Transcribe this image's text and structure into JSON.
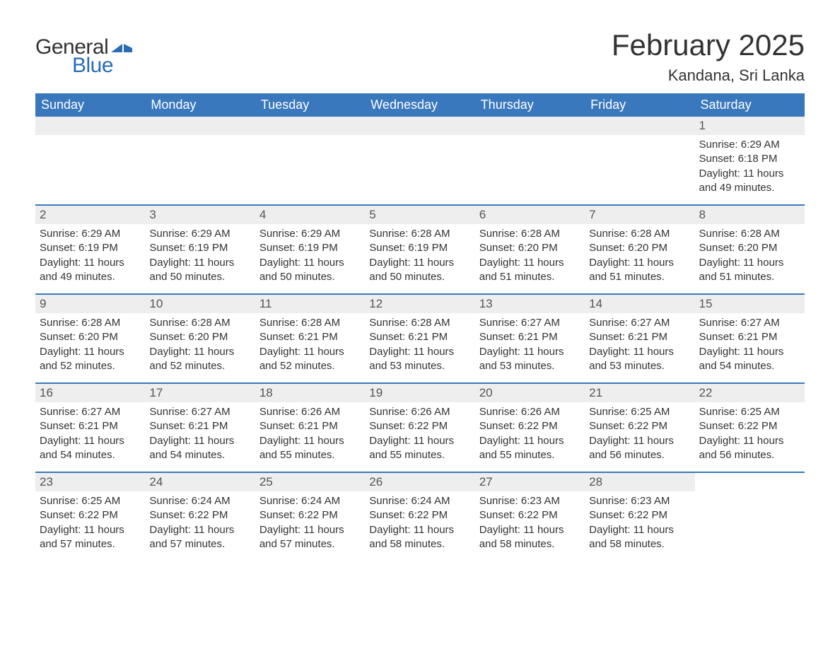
{
  "logo": {
    "text_general": "General",
    "text_blue": "Blue",
    "general_color": "#333333",
    "blue_color": "#2a6db5",
    "flag_color": "#2a6db5"
  },
  "header": {
    "month_title": "February 2025",
    "location": "Kandana, Sri Lanka"
  },
  "colors": {
    "header_bg": "#3a78bd",
    "header_text": "#ffffff",
    "daynum_bg": "#eeeeee",
    "week_border": "#3a78bd",
    "body_text": "#333333",
    "page_bg": "#ffffff"
  },
  "weekdays": [
    "Sunday",
    "Monday",
    "Tuesday",
    "Wednesday",
    "Thursday",
    "Friday",
    "Saturday"
  ],
  "weeks": [
    [
      null,
      null,
      null,
      null,
      null,
      null,
      {
        "day": "1",
        "sunrise": "Sunrise: 6:29 AM",
        "sunset": "Sunset: 6:18 PM",
        "daylight1": "Daylight: 11 hours",
        "daylight2": "and 49 minutes."
      }
    ],
    [
      {
        "day": "2",
        "sunrise": "Sunrise: 6:29 AM",
        "sunset": "Sunset: 6:19 PM",
        "daylight1": "Daylight: 11 hours",
        "daylight2": "and 49 minutes."
      },
      {
        "day": "3",
        "sunrise": "Sunrise: 6:29 AM",
        "sunset": "Sunset: 6:19 PM",
        "daylight1": "Daylight: 11 hours",
        "daylight2": "and 50 minutes."
      },
      {
        "day": "4",
        "sunrise": "Sunrise: 6:29 AM",
        "sunset": "Sunset: 6:19 PM",
        "daylight1": "Daylight: 11 hours",
        "daylight2": "and 50 minutes."
      },
      {
        "day": "5",
        "sunrise": "Sunrise: 6:28 AM",
        "sunset": "Sunset: 6:19 PM",
        "daylight1": "Daylight: 11 hours",
        "daylight2": "and 50 minutes."
      },
      {
        "day": "6",
        "sunrise": "Sunrise: 6:28 AM",
        "sunset": "Sunset: 6:20 PM",
        "daylight1": "Daylight: 11 hours",
        "daylight2": "and 51 minutes."
      },
      {
        "day": "7",
        "sunrise": "Sunrise: 6:28 AM",
        "sunset": "Sunset: 6:20 PM",
        "daylight1": "Daylight: 11 hours",
        "daylight2": "and 51 minutes."
      },
      {
        "day": "8",
        "sunrise": "Sunrise: 6:28 AM",
        "sunset": "Sunset: 6:20 PM",
        "daylight1": "Daylight: 11 hours",
        "daylight2": "and 51 minutes."
      }
    ],
    [
      {
        "day": "9",
        "sunrise": "Sunrise: 6:28 AM",
        "sunset": "Sunset: 6:20 PM",
        "daylight1": "Daylight: 11 hours",
        "daylight2": "and 52 minutes."
      },
      {
        "day": "10",
        "sunrise": "Sunrise: 6:28 AM",
        "sunset": "Sunset: 6:20 PM",
        "daylight1": "Daylight: 11 hours",
        "daylight2": "and 52 minutes."
      },
      {
        "day": "11",
        "sunrise": "Sunrise: 6:28 AM",
        "sunset": "Sunset: 6:21 PM",
        "daylight1": "Daylight: 11 hours",
        "daylight2": "and 52 minutes."
      },
      {
        "day": "12",
        "sunrise": "Sunrise: 6:28 AM",
        "sunset": "Sunset: 6:21 PM",
        "daylight1": "Daylight: 11 hours",
        "daylight2": "and 53 minutes."
      },
      {
        "day": "13",
        "sunrise": "Sunrise: 6:27 AM",
        "sunset": "Sunset: 6:21 PM",
        "daylight1": "Daylight: 11 hours",
        "daylight2": "and 53 minutes."
      },
      {
        "day": "14",
        "sunrise": "Sunrise: 6:27 AM",
        "sunset": "Sunset: 6:21 PM",
        "daylight1": "Daylight: 11 hours",
        "daylight2": "and 53 minutes."
      },
      {
        "day": "15",
        "sunrise": "Sunrise: 6:27 AM",
        "sunset": "Sunset: 6:21 PM",
        "daylight1": "Daylight: 11 hours",
        "daylight2": "and 54 minutes."
      }
    ],
    [
      {
        "day": "16",
        "sunrise": "Sunrise: 6:27 AM",
        "sunset": "Sunset: 6:21 PM",
        "daylight1": "Daylight: 11 hours",
        "daylight2": "and 54 minutes."
      },
      {
        "day": "17",
        "sunrise": "Sunrise: 6:27 AM",
        "sunset": "Sunset: 6:21 PM",
        "daylight1": "Daylight: 11 hours",
        "daylight2": "and 54 minutes."
      },
      {
        "day": "18",
        "sunrise": "Sunrise: 6:26 AM",
        "sunset": "Sunset: 6:21 PM",
        "daylight1": "Daylight: 11 hours",
        "daylight2": "and 55 minutes."
      },
      {
        "day": "19",
        "sunrise": "Sunrise: 6:26 AM",
        "sunset": "Sunset: 6:22 PM",
        "daylight1": "Daylight: 11 hours",
        "daylight2": "and 55 minutes."
      },
      {
        "day": "20",
        "sunrise": "Sunrise: 6:26 AM",
        "sunset": "Sunset: 6:22 PM",
        "daylight1": "Daylight: 11 hours",
        "daylight2": "and 55 minutes."
      },
      {
        "day": "21",
        "sunrise": "Sunrise: 6:25 AM",
        "sunset": "Sunset: 6:22 PM",
        "daylight1": "Daylight: 11 hours",
        "daylight2": "and 56 minutes."
      },
      {
        "day": "22",
        "sunrise": "Sunrise: 6:25 AM",
        "sunset": "Sunset: 6:22 PM",
        "daylight1": "Daylight: 11 hours",
        "daylight2": "and 56 minutes."
      }
    ],
    [
      {
        "day": "23",
        "sunrise": "Sunrise: 6:25 AM",
        "sunset": "Sunset: 6:22 PM",
        "daylight1": "Daylight: 11 hours",
        "daylight2": "and 57 minutes."
      },
      {
        "day": "24",
        "sunrise": "Sunrise: 6:24 AM",
        "sunset": "Sunset: 6:22 PM",
        "daylight1": "Daylight: 11 hours",
        "daylight2": "and 57 minutes."
      },
      {
        "day": "25",
        "sunrise": "Sunrise: 6:24 AM",
        "sunset": "Sunset: 6:22 PM",
        "daylight1": "Daylight: 11 hours",
        "daylight2": "and 57 minutes."
      },
      {
        "day": "26",
        "sunrise": "Sunrise: 6:24 AM",
        "sunset": "Sunset: 6:22 PM",
        "daylight1": "Daylight: 11 hours",
        "daylight2": "and 58 minutes."
      },
      {
        "day": "27",
        "sunrise": "Sunrise: 6:23 AM",
        "sunset": "Sunset: 6:22 PM",
        "daylight1": "Daylight: 11 hours",
        "daylight2": "and 58 minutes."
      },
      {
        "day": "28",
        "sunrise": "Sunrise: 6:23 AM",
        "sunset": "Sunset: 6:22 PM",
        "daylight1": "Daylight: 11 hours",
        "daylight2": "and 58 minutes."
      },
      null
    ]
  ]
}
